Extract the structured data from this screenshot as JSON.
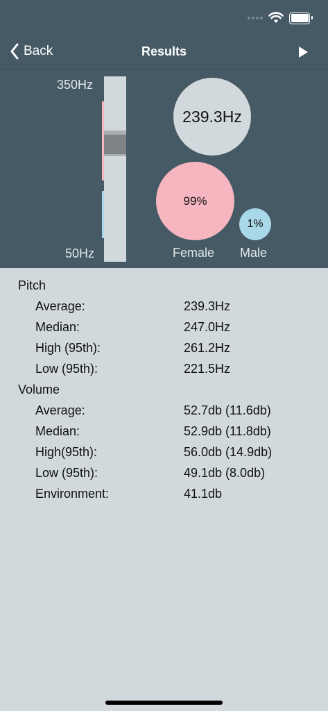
{
  "nav": {
    "back_label": "Back",
    "title": "Results"
  },
  "status_bar": {
    "icons": [
      "signal-icon",
      "wifi-icon",
      "battery-icon"
    ]
  },
  "pitch_scale": {
    "top_label": "350Hz",
    "bottom_label": "50Hz"
  },
  "summary": {
    "average_pitch": "239.3Hz",
    "female_percent": "99%",
    "male_percent": "1%",
    "female_label": "Female",
    "male_label": "Male"
  },
  "colors": {
    "header": "#465a65",
    "female": "#f6b6c0",
    "male": "#a9d8e9",
    "background": "#d1d9dd"
  },
  "pitch": {
    "heading": "Pitch",
    "rows": [
      {
        "label": "Average:",
        "value": "239.3Hz"
      },
      {
        "label": "Median:",
        "value": "247.0Hz"
      },
      {
        "label": "High (95th):",
        "value": "261.2Hz"
      },
      {
        "label": "Low (95th):",
        "value": "221.5Hz"
      }
    ]
  },
  "volume": {
    "heading": "Volume",
    "rows": [
      {
        "label": "Average:",
        "value": "52.7db (11.6db)"
      },
      {
        "label": "Median:",
        "value": "52.9db (11.8db)"
      },
      {
        "label": "High(95th):",
        "value": "56.0db (14.9db)"
      },
      {
        "label": "Low (95th):",
        "value": "49.1db (8.0db)"
      },
      {
        "label": "Environment:",
        "value": "41.1db"
      }
    ]
  }
}
